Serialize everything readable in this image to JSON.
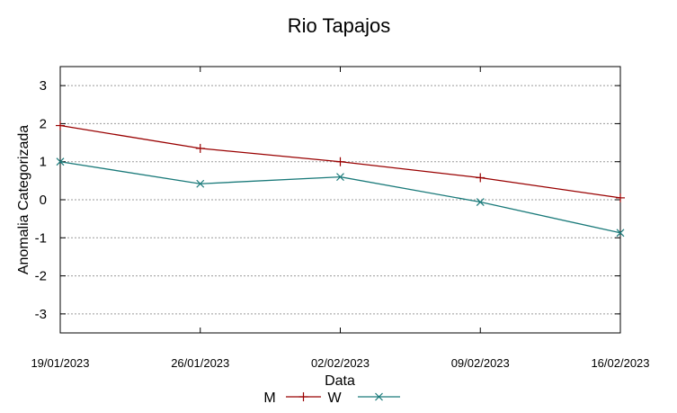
{
  "chart_data": {
    "type": "line",
    "title": "Rio Tapajos",
    "xlabel": "Data",
    "ylabel": "Anomalia Categorizada",
    "categories": [
      "19/01/2023",
      "26/01/2023",
      "02/02/2023",
      "09/02/2023",
      "16/02/2023"
    ],
    "ylim": [
      -3.5,
      3.5
    ],
    "yticks": [
      "3",
      "2",
      "1",
      "0",
      "-1",
      "-2",
      "-3"
    ],
    "ytick_values": [
      3,
      2,
      1,
      0,
      -1,
      -2,
      -3
    ],
    "grid": true,
    "legend": "bottom-center",
    "series": [
      {
        "name": "M",
        "values": [
          1.95,
          1.35,
          1.0,
          0.58,
          0.05
        ],
        "color": "#990000",
        "marker": "plus"
      },
      {
        "name": "W",
        "values": [
          1.0,
          0.42,
          0.6,
          -0.06,
          -0.87
        ],
        "color": "#1a7a7a",
        "marker": "cross"
      }
    ]
  }
}
